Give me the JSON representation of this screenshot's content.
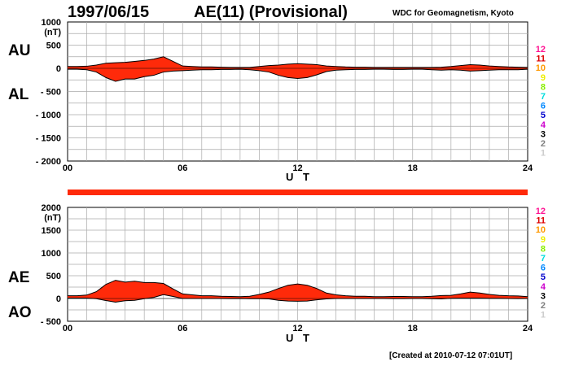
{
  "header": {
    "date": "1997/06/15",
    "title": "AE(11) (Provisional)",
    "org": "WDC for Geomagnetism, Kyoto"
  },
  "footer": {
    "created": "[Created at 2010-07-12 07:01UT]"
  },
  "level_legend": {
    "labels": [
      "12",
      "11",
      "10",
      "9",
      "8",
      "7",
      "6",
      "5",
      "4",
      "3",
      "2",
      "1"
    ],
    "colors": [
      "#ff1493",
      "#dd0000",
      "#ff9900",
      "#eeee00",
      "#88ee00",
      "#00dddd",
      "#0088ff",
      "#0000cc",
      "#cc00cc",
      "#000000",
      "#808080",
      "#cccccc"
    ]
  },
  "colors": {
    "fill": "#ff2a0a",
    "stroke": "#000000",
    "grid": "#aaaaaa"
  },
  "chart_data": [
    {
      "type": "area",
      "panel": "AU/AL",
      "upper_label": "AU",
      "lower_label": "AL",
      "unit": "(nT)",
      "xlabel": "U T",
      "xlim": [
        0,
        24
      ],
      "ylim": [
        -2000,
        1000
      ],
      "xticks": [
        "00",
        "06",
        "12",
        "18",
        "24"
      ],
      "yticks": [
        "1000",
        "500",
        "0",
        "- 500",
        "- 1000",
        "- 1500",
        "- 2000"
      ],
      "ytick_values": [
        1000,
        500,
        0,
        -500,
        -1000,
        -1500,
        -2000
      ],
      "x": [
        0,
        0.5,
        1,
        1.5,
        2,
        2.5,
        3,
        3.5,
        4,
        4.5,
        5,
        5.5,
        6,
        6.5,
        7,
        7.5,
        8,
        8.5,
        9,
        9.5,
        10,
        10.5,
        11,
        11.5,
        12,
        12.5,
        13,
        13.5,
        14,
        14.5,
        15,
        15.5,
        16,
        16.5,
        17,
        17.5,
        18,
        18.5,
        19,
        19.5,
        20,
        20.5,
        21,
        21.5,
        22,
        22.5,
        23,
        23.5,
        24
      ],
      "series": [
        {
          "name": "AU",
          "values": [
            40,
            40,
            45,
            70,
            110,
            120,
            130,
            150,
            170,
            200,
            250,
            150,
            50,
            40,
            30,
            30,
            25,
            20,
            20,
            20,
            40,
            60,
            70,
            90,
            100,
            90,
            80,
            50,
            40,
            30,
            25,
            25,
            20,
            20,
            20,
            20,
            20,
            20,
            20,
            25,
            40,
            60,
            80,
            70,
            50,
            40,
            30,
            25,
            20
          ]
        },
        {
          "name": "AL",
          "values": [
            -20,
            -20,
            -30,
            -80,
            -200,
            -280,
            -230,
            -230,
            -180,
            -150,
            -80,
            -60,
            -50,
            -40,
            -30,
            -30,
            -25,
            -25,
            -20,
            -30,
            -50,
            -80,
            -150,
            -200,
            -220,
            -200,
            -140,
            -70,
            -40,
            -30,
            -25,
            -25,
            -20,
            -20,
            -25,
            -25,
            -20,
            -20,
            -30,
            -40,
            -30,
            -40,
            -60,
            -50,
            -40,
            -30,
            -30,
            -30,
            -20
          ]
        }
      ]
    },
    {
      "type": "area",
      "panel": "AE/AO",
      "upper_label": "AE",
      "lower_label": "AO",
      "unit": "(nT)",
      "xlabel": "U T",
      "xlim": [
        0,
        24
      ],
      "ylim": [
        -500,
        2000
      ],
      "xticks": [
        "00",
        "06",
        "12",
        "18",
        "24"
      ],
      "yticks": [
        "2000",
        "1500",
        "1000",
        "500",
        "0",
        "- 500"
      ],
      "ytick_values": [
        2000,
        1500,
        1000,
        500,
        0,
        -500
      ],
      "x": [
        0,
        0.5,
        1,
        1.5,
        2,
        2.5,
        3,
        3.5,
        4,
        4.5,
        5,
        5.5,
        6,
        6.5,
        7,
        7.5,
        8,
        8.5,
        9,
        9.5,
        10,
        10.5,
        11,
        11.5,
        12,
        12.5,
        13,
        13.5,
        14,
        14.5,
        15,
        15.5,
        16,
        16.5,
        17,
        17.5,
        18,
        18.5,
        19,
        19.5,
        20,
        20.5,
        21,
        21.5,
        22,
        22.5,
        23,
        23.5,
        24
      ],
      "series": [
        {
          "name": "AE",
          "values": [
            60,
            60,
            75,
            150,
            310,
            400,
            360,
            380,
            350,
            350,
            330,
            210,
            100,
            80,
            60,
            60,
            50,
            45,
            40,
            50,
            90,
            140,
            220,
            290,
            320,
            290,
            220,
            120,
            80,
            60,
            50,
            50,
            40,
            40,
            45,
            45,
            40,
            40,
            50,
            65,
            70,
            100,
            140,
            120,
            90,
            70,
            60,
            55,
            40
          ]
        },
        {
          "name": "AO",
          "values": [
            10,
            10,
            8,
            -5,
            -45,
            -80,
            -50,
            -40,
            -5,
            25,
            85,
            45,
            0,
            0,
            0,
            0,
            0,
            -3,
            0,
            -5,
            -5,
            -10,
            -40,
            -55,
            -60,
            -55,
            -30,
            -10,
            0,
            0,
            0,
            0,
            0,
            0,
            -3,
            -3,
            0,
            0,
            -5,
            -8,
            5,
            10,
            10,
            10,
            5,
            5,
            0,
            -3,
            0
          ]
        }
      ]
    }
  ]
}
